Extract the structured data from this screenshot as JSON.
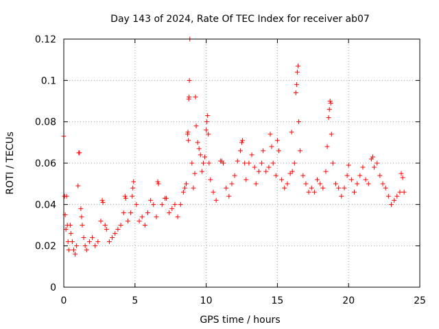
{
  "chart_data": {
    "type": "scatter",
    "title": "Day 143 of 2024, Rate Of TEC Index for receiver ab07",
    "xlabel": "GPS time / hours",
    "ylabel": "ROTI / TECUs",
    "xlim": [
      0,
      25
    ],
    "ylim": [
      0,
      0.12
    ],
    "xticks": [
      0,
      5,
      10,
      15,
      20,
      25
    ],
    "xtick_labels": [
      "0",
      "5",
      "10",
      "15",
      "20",
      "25"
    ],
    "yticks": [
      0,
      0.02,
      0.04,
      0.06,
      0.08,
      0.1,
      0.12
    ],
    "ytick_labels": [
      "0",
      "0.02",
      "0.04",
      "0.06",
      "0.08",
      "0.1",
      "0.12"
    ],
    "grid": true,
    "marker": "plus",
    "color": "#ff0000",
    "series": [
      {
        "name": "ROTI",
        "points": [
          [
            0.0,
            0.073
          ],
          [
            0.05,
            0.044
          ],
          [
            0.1,
            0.035
          ],
          [
            0.15,
            0.028
          ],
          [
            0.2,
            0.044
          ],
          [
            0.25,
            0.03
          ],
          [
            0.3,
            0.022
          ],
          [
            0.35,
            0.018
          ],
          [
            0.45,
            0.03
          ],
          [
            0.5,
            0.026
          ],
          [
            0.6,
            0.022
          ],
          [
            0.7,
            0.018
          ],
          [
            0.8,
            0.016
          ],
          [
            0.9,
            0.02
          ],
          [
            1.0,
            0.049
          ],
          [
            1.05,
            0.065
          ],
          [
            1.1,
            0.065
          ],
          [
            1.2,
            0.038
          ],
          [
            1.25,
            0.034
          ],
          [
            1.3,
            0.03
          ],
          [
            1.4,
            0.024
          ],
          [
            1.5,
            0.02
          ],
          [
            1.6,
            0.018
          ],
          [
            1.8,
            0.022
          ],
          [
            2.0,
            0.024
          ],
          [
            2.2,
            0.02
          ],
          [
            2.4,
            0.022
          ],
          [
            2.6,
            0.032
          ],
          [
            2.7,
            0.042
          ],
          [
            2.75,
            0.041
          ],
          [
            2.9,
            0.03
          ],
          [
            3.0,
            0.028
          ],
          [
            3.2,
            0.022
          ],
          [
            3.4,
            0.024
          ],
          [
            3.6,
            0.026
          ],
          [
            3.8,
            0.028
          ],
          [
            4.0,
            0.03
          ],
          [
            4.2,
            0.036
          ],
          [
            4.3,
            0.044
          ],
          [
            4.35,
            0.043
          ],
          [
            4.5,
            0.032
          ],
          [
            4.7,
            0.036
          ],
          [
            4.8,
            0.044
          ],
          [
            4.85,
            0.048
          ],
          [
            4.9,
            0.051
          ],
          [
            5.1,
            0.04
          ],
          [
            5.3,
            0.032
          ],
          [
            5.5,
            0.034
          ],
          [
            5.7,
            0.03
          ],
          [
            5.9,
            0.036
          ],
          [
            6.1,
            0.042
          ],
          [
            6.3,
            0.04
          ],
          [
            6.5,
            0.034
          ],
          [
            6.6,
            0.051
          ],
          [
            6.65,
            0.05
          ],
          [
            6.9,
            0.04
          ],
          [
            7.1,
            0.043
          ],
          [
            7.2,
            0.043
          ],
          [
            7.4,
            0.036
          ],
          [
            7.6,
            0.038
          ],
          [
            7.8,
            0.04
          ],
          [
            8.0,
            0.034
          ],
          [
            8.2,
            0.04
          ],
          [
            8.4,
            0.046
          ],
          [
            8.5,
            0.048
          ],
          [
            8.6,
            0.05
          ],
          [
            8.7,
            0.074
          ],
          [
            8.72,
            0.075
          ],
          [
            8.75,
            0.071
          ],
          [
            8.78,
            0.091
          ],
          [
            8.8,
            0.092
          ],
          [
            8.82,
            0.1
          ],
          [
            8.85,
            0.12
          ],
          [
            9.0,
            0.06
          ],
          [
            9.1,
            0.048
          ],
          [
            9.2,
            0.055
          ],
          [
            9.25,
            0.092
          ],
          [
            9.3,
            0.078
          ],
          [
            9.4,
            0.07
          ],
          [
            9.5,
            0.067
          ],
          [
            9.6,
            0.064
          ],
          [
            9.7,
            0.056
          ],
          [
            9.8,
            0.06
          ],
          [
            9.9,
            0.063
          ],
          [
            10.0,
            0.076
          ],
          [
            10.05,
            0.08
          ],
          [
            10.1,
            0.083
          ],
          [
            10.15,
            0.074
          ],
          [
            10.2,
            0.06
          ],
          [
            10.3,
            0.052
          ],
          [
            10.5,
            0.046
          ],
          [
            10.7,
            0.042
          ],
          [
            11.0,
            0.061
          ],
          [
            11.1,
            0.061
          ],
          [
            11.2,
            0.06
          ],
          [
            11.4,
            0.048
          ],
          [
            11.6,
            0.044
          ],
          [
            11.8,
            0.05
          ],
          [
            12.0,
            0.054
          ],
          [
            12.2,
            0.061
          ],
          [
            12.4,
            0.066
          ],
          [
            12.5,
            0.07
          ],
          [
            12.55,
            0.071
          ],
          [
            12.7,
            0.06
          ],
          [
            12.8,
            0.052
          ],
          [
            13.0,
            0.06
          ],
          [
            13.2,
            0.064
          ],
          [
            13.4,
            0.058
          ],
          [
            13.5,
            0.05
          ],
          [
            13.7,
            0.056
          ],
          [
            13.9,
            0.06
          ],
          [
            14.0,
            0.066
          ],
          [
            14.2,
            0.056
          ],
          [
            14.4,
            0.058
          ],
          [
            14.5,
            0.074
          ],
          [
            14.6,
            0.068
          ],
          [
            14.7,
            0.06
          ],
          [
            14.9,
            0.054
          ],
          [
            15.0,
            0.071
          ],
          [
            15.1,
            0.066
          ],
          [
            15.3,
            0.052
          ],
          [
            15.5,
            0.048
          ],
          [
            15.7,
            0.05
          ],
          [
            15.9,
            0.055
          ],
          [
            16.0,
            0.075
          ],
          [
            16.05,
            0.056
          ],
          [
            16.2,
            0.06
          ],
          [
            16.3,
            0.094
          ],
          [
            16.35,
            0.098
          ],
          [
            16.4,
            0.104
          ],
          [
            16.45,
            0.107
          ],
          [
            16.5,
            0.08
          ],
          [
            16.6,
            0.066
          ],
          [
            16.8,
            0.054
          ],
          [
            17.0,
            0.05
          ],
          [
            17.2,
            0.046
          ],
          [
            17.4,
            0.048
          ],
          [
            17.6,
            0.046
          ],
          [
            17.8,
            0.052
          ],
          [
            18.0,
            0.05
          ],
          [
            18.2,
            0.048
          ],
          [
            18.4,
            0.056
          ],
          [
            18.5,
            0.068
          ],
          [
            18.6,
            0.082
          ],
          [
            18.65,
            0.086
          ],
          [
            18.7,
            0.09
          ],
          [
            18.75,
            0.089
          ],
          [
            18.8,
            0.074
          ],
          [
            18.9,
            0.06
          ],
          [
            19.1,
            0.05
          ],
          [
            19.3,
            0.048
          ],
          [
            19.5,
            0.044
          ],
          [
            19.7,
            0.048
          ],
          [
            19.9,
            0.054
          ],
          [
            20.0,
            0.059
          ],
          [
            20.2,
            0.052
          ],
          [
            20.4,
            0.046
          ],
          [
            20.6,
            0.05
          ],
          [
            20.8,
            0.054
          ],
          [
            21.0,
            0.058
          ],
          [
            21.2,
            0.052
          ],
          [
            21.4,
            0.05
          ],
          [
            21.6,
            0.062
          ],
          [
            21.7,
            0.063
          ],
          [
            21.8,
            0.058
          ],
          [
            22.0,
            0.06
          ],
          [
            22.2,
            0.054
          ],
          [
            22.4,
            0.05
          ],
          [
            22.6,
            0.048
          ],
          [
            22.8,
            0.044
          ],
          [
            23.0,
            0.04
          ],
          [
            23.2,
            0.042
          ],
          [
            23.4,
            0.044
          ],
          [
            23.6,
            0.046
          ],
          [
            23.7,
            0.055
          ],
          [
            23.8,
            0.053
          ],
          [
            23.9,
            0.046
          ]
        ]
      }
    ]
  }
}
